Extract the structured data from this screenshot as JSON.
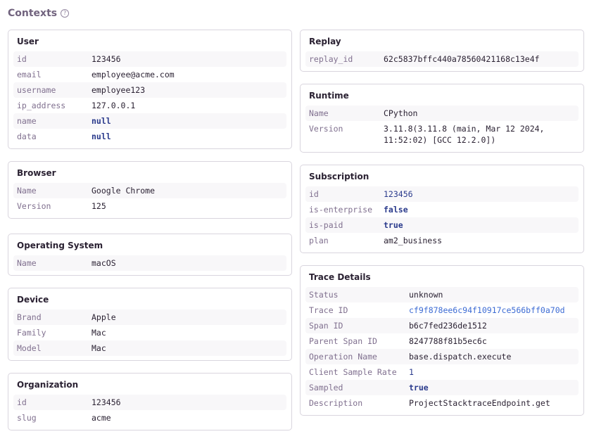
{
  "title": "Contexts",
  "help_icon": "question-circle-icon",
  "colors": {
    "bool": "#2a3a8c",
    "link": "#3c6bd4"
  },
  "left": [
    {
      "title": "User",
      "rows": [
        [
          "id",
          "123456",
          "plain"
        ],
        [
          "email",
          "employee@acme.com",
          "plain"
        ],
        [
          "username",
          "employee123",
          "plain"
        ],
        [
          "ip_address",
          "127.0.0.1",
          "plain"
        ],
        [
          "name",
          "null",
          "bool"
        ],
        [
          "data",
          "null",
          "bool"
        ]
      ]
    },
    {
      "title": "Browser",
      "rows": [
        [
          "Name",
          "Google Chrome",
          "plain"
        ],
        [
          "Version",
          "125",
          "plain"
        ]
      ]
    },
    {
      "title": "Operating System",
      "rows": [
        [
          "Name",
          "macOS",
          "plain"
        ]
      ]
    },
    {
      "title": "Device",
      "rows": [
        [
          "Brand",
          "Apple",
          "plain"
        ],
        [
          "Family",
          "Mac",
          "plain"
        ],
        [
          "Model",
          "Mac",
          "plain"
        ]
      ]
    },
    {
      "title": "Organization",
      "rows": [
        [
          "id",
          "123456",
          "plain"
        ],
        [
          "slug",
          "acme",
          "plain"
        ]
      ]
    }
  ],
  "right": [
    {
      "title": "Replay",
      "rows": [
        [
          "replay_id",
          "62c5837bffc440a78560421168c13e4f",
          "plain"
        ]
      ]
    },
    {
      "title": "Runtime",
      "rows": [
        [
          "Name",
          "CPython",
          "plain"
        ],
        [
          "Version",
          "3.11.8(3.11.8 (main, Mar 12 2024,\n11:52:02) [GCC 12.2.0])",
          "plain"
        ]
      ]
    },
    {
      "title": "Subscription",
      "rows": [
        [
          "id",
          "123456",
          "num"
        ],
        [
          "is-enterprise",
          "false",
          "bool"
        ],
        [
          "is-paid",
          "true",
          "bool"
        ],
        [
          "plan",
          "am2_business",
          "plain"
        ]
      ]
    },
    {
      "title": "Trace Details",
      "wide": true,
      "rows": [
        [
          "Status",
          "unknown",
          "plain"
        ],
        [
          "Trace ID",
          "cf9f878ee6c94f10917ce566bff0a70d",
          "link"
        ],
        [
          "Span ID",
          "b6c7fed236de1512",
          "plain"
        ],
        [
          "Parent Span ID",
          "8247788f81b5ec6c",
          "plain"
        ],
        [
          "Operation Name",
          "base.dispatch.execute",
          "plain"
        ],
        [
          "Client Sample Rate",
          "1",
          "num"
        ],
        [
          "Sampled",
          "true",
          "bool"
        ],
        [
          "Description",
          "ProjectStacktraceEndpoint.get",
          "plain"
        ]
      ]
    }
  ]
}
